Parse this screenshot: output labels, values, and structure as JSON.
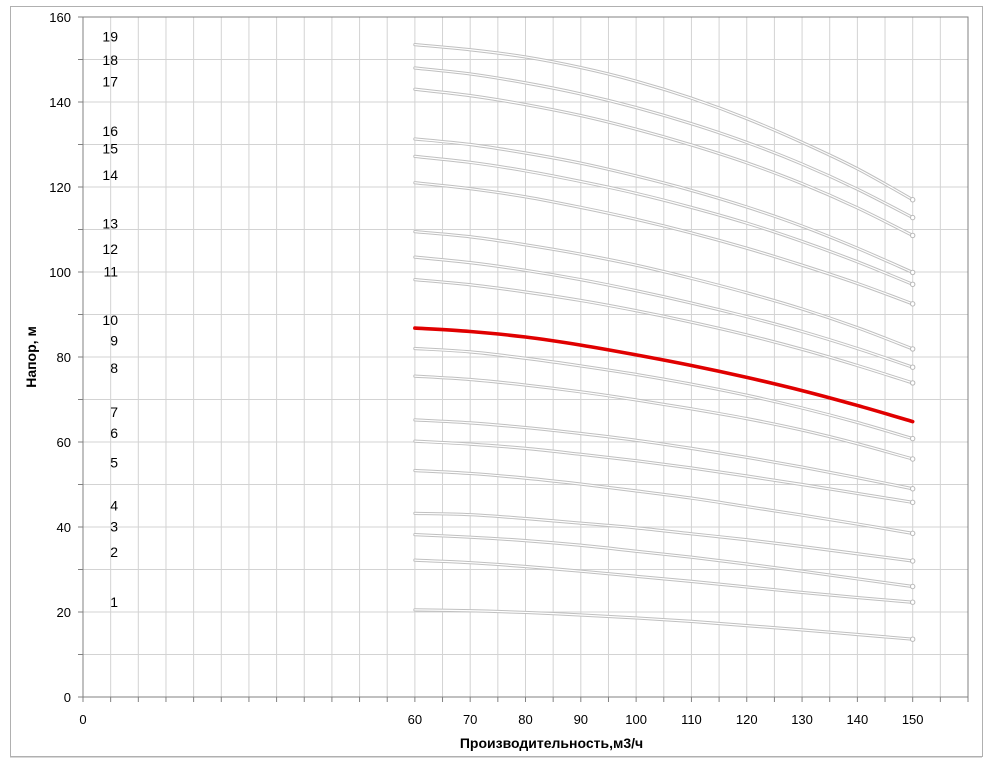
{
  "chart_data": {
    "type": "line",
    "xlabel": "Производительность,м3/ч",
    "ylabel": "Напор, м",
    "xlim": [
      0,
      160
    ],
    "ylim": [
      0,
      160
    ],
    "x_ticks": [
      0,
      60,
      70,
      80,
      90,
      100,
      110,
      120,
      130,
      140,
      150
    ],
    "y_ticks": [
      0,
      20,
      40,
      60,
      80,
      100,
      120,
      140,
      160
    ],
    "grid": true,
    "highlight_color": "#e00000",
    "curve_color": "#c0c0c0",
    "x": [
      60,
      70,
      80,
      90,
      100,
      110,
      120,
      130,
      140,
      150
    ],
    "series": [
      {
        "name": "1",
        "values": [
          20.5,
          20.3,
          19.9,
          19.3,
          18.6,
          17.8,
          16.8,
          15.8,
          14.7,
          13.6
        ]
      },
      {
        "name": "2",
        "values": [
          32.2,
          31.6,
          30.7,
          29.6,
          28.4,
          27.2,
          25.9,
          24.6,
          23.4,
          22.3
        ]
      },
      {
        "name": "3",
        "values": [
          38.2,
          37.6,
          36.8,
          35.7,
          34.3,
          32.9,
          31.3,
          29.6,
          27.8,
          26.0
        ]
      },
      {
        "name": "4",
        "values": [
          43.2,
          42.9,
          42.0,
          40.9,
          39.8,
          38.4,
          37.0,
          35.4,
          33.7,
          32.0
        ]
      },
      {
        "name": "5",
        "values": [
          53.3,
          52.6,
          51.5,
          50.1,
          48.5,
          46.8,
          44.8,
          42.8,
          40.7,
          38.5
        ]
      },
      {
        "name": "6",
        "values": [
          60.2,
          59.5,
          58.5,
          57.1,
          55.6,
          53.9,
          52.0,
          50.0,
          47.9,
          45.8
        ]
      },
      {
        "name": "7",
        "values": [
          65.2,
          64.5,
          63.4,
          62.0,
          60.4,
          58.5,
          56.4,
          54.1,
          51.6,
          49.0
        ]
      },
      {
        "name": "8",
        "values": [
          75.5,
          74.7,
          73.4,
          71.8,
          69.9,
          67.8,
          65.5,
          62.8,
          59.6,
          56.0
        ]
      },
      {
        "name": "9",
        "values": [
          82.0,
          81.2,
          79.7,
          77.9,
          75.9,
          73.6,
          71.0,
          68.0,
          64.6,
          60.8
        ]
      },
      {
        "name": "10",
        "values": [
          86.8,
          86.0,
          84.7,
          82.8,
          80.5,
          78.0,
          75.2,
          72.1,
          68.6,
          64.8
        ]
      },
      {
        "name": "11",
        "values": [
          98.2,
          97.0,
          95.3,
          93.3,
          90.9,
          88.2,
          85.2,
          81.8,
          78.0,
          73.9
        ]
      },
      {
        "name": "12",
        "values": [
          103.5,
          102.2,
          100.4,
          98.2,
          95.6,
          92.7,
          89.5,
          86.0,
          82.0,
          77.6
        ]
      },
      {
        "name": "13",
        "values": [
          109.5,
          108.3,
          106.4,
          104.2,
          101.6,
          98.5,
          95.1,
          91.3,
          86.9,
          81.9
        ]
      },
      {
        "name": "14",
        "values": [
          121.0,
          119.6,
          117.7,
          115.2,
          112.4,
          109.2,
          105.6,
          101.6,
          97.3,
          92.5
        ]
      },
      {
        "name": "15",
        "values": [
          127.2,
          125.8,
          123.8,
          121.3,
          118.5,
          115.2,
          111.5,
          107.2,
          102.4,
          97.1
        ]
      },
      {
        "name": "16",
        "values": [
          131.3,
          130.0,
          128.0,
          125.6,
          122.6,
          119.2,
          115.3,
          110.8,
          105.6,
          99.9
        ]
      },
      {
        "name": "17",
        "values": [
          143.0,
          141.5,
          139.4,
          136.8,
          133.6,
          129.9,
          125.7,
          120.8,
          115.1,
          108.6
        ]
      },
      {
        "name": "18",
        "values": [
          148.0,
          146.6,
          144.5,
          141.9,
          138.7,
          134.9,
          130.5,
          125.4,
          119.5,
          112.8
        ]
      },
      {
        "name": "19",
        "values": [
          153.5,
          152.3,
          150.6,
          148.1,
          144.9,
          140.9,
          136.1,
          130.5,
          124.3,
          117.0
        ]
      }
    ],
    "highlighted_series": "10"
  }
}
